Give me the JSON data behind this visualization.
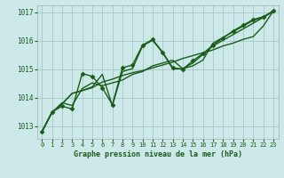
{
  "title": "Graphe pression niveau de la mer (hPa)",
  "bg_color": "#cce8e8",
  "grid_color": "#aacccc",
  "line_color": "#1a5c1a",
  "marker_color": "#1a5c1a",
  "xlim": [
    -0.5,
    23.5
  ],
  "ylim": [
    1012.55,
    1017.25
  ],
  "yticks": [
    1013,
    1014,
    1015,
    1016,
    1017
  ],
  "xticks": [
    0,
    1,
    2,
    3,
    4,
    5,
    6,
    7,
    8,
    9,
    10,
    11,
    12,
    13,
    14,
    15,
    16,
    17,
    18,
    19,
    20,
    21,
    22,
    23
  ],
  "series": [
    {
      "x": [
        0,
        1,
        2,
        3,
        4,
        5,
        6,
        7,
        8,
        9,
        10,
        11,
        12,
        13,
        14,
        15,
        16,
        17,
        18,
        19,
        20,
        21,
        22,
        23
      ],
      "y": [
        1012.8,
        1013.5,
        1013.7,
        1013.6,
        1014.85,
        1014.75,
        1014.35,
        1013.75,
        1015.05,
        1015.15,
        1015.85,
        1016.05,
        1015.6,
        1015.05,
        1015.0,
        1015.3,
        1015.55,
        1015.85,
        1016.1,
        1016.35,
        1016.55,
        1016.75,
        1016.85,
        1017.05
      ],
      "marker": true,
      "lw": 1.0
    },
    {
      "x": [
        0,
        1,
        2,
        3,
        4,
        5,
        6,
        7,
        8,
        9,
        10,
        11,
        12,
        13,
        14,
        15,
        16,
        17,
        18,
        19,
        20,
        21,
        22,
        23
      ],
      "y": [
        1012.8,
        1013.48,
        1013.78,
        1014.15,
        1014.25,
        1014.35,
        1014.55,
        1014.65,
        1014.78,
        1014.88,
        1014.95,
        1015.05,
        1015.15,
        1015.25,
        1015.38,
        1015.48,
        1015.58,
        1015.68,
        1015.82,
        1015.92,
        1016.05,
        1016.15,
        1016.52,
        1017.05
      ],
      "marker": false,
      "lw": 1.0
    },
    {
      "x": [
        0,
        1,
        2,
        3,
        4,
        5,
        6,
        7,
        8,
        9,
        10,
        11,
        12,
        13,
        14,
        15,
        16,
        17,
        18,
        19,
        20,
        21,
        22,
        23
      ],
      "y": [
        1012.8,
        1013.48,
        1013.78,
        1014.15,
        1014.25,
        1014.38,
        1014.82,
        1013.72,
        1014.92,
        1015.02,
        1015.82,
        1016.02,
        1015.58,
        1015.02,
        1015.02,
        1015.12,
        1015.32,
        1015.92,
        1016.12,
        1016.32,
        1016.52,
        1016.72,
        1016.82,
        1017.05
      ],
      "marker": false,
      "lw": 1.0
    },
    {
      "x": [
        0,
        1,
        2,
        3,
        4,
        5,
        6,
        7,
        8,
        9,
        10,
        11,
        12,
        13,
        14,
        15,
        16,
        17,
        18,
        19,
        20,
        21,
        22,
        23
      ],
      "y": [
        1012.8,
        1013.48,
        1013.82,
        1013.72,
        1014.32,
        1014.52,
        1014.42,
        1014.52,
        1014.62,
        1014.82,
        1014.92,
        1015.12,
        1015.22,
        1015.32,
        1015.02,
        1015.22,
        1015.52,
        1015.82,
        1016.02,
        1016.22,
        1016.42,
        1016.62,
        1016.82,
        1017.05
      ],
      "marker": false,
      "lw": 1.0
    }
  ],
  "xlabel_fontsize": 6.0,
  "ytick_fontsize": 5.5,
  "xtick_fontsize": 5.0,
  "xlabel_color": "#1a5c1a",
  "tick_color": "#1a5c1a"
}
